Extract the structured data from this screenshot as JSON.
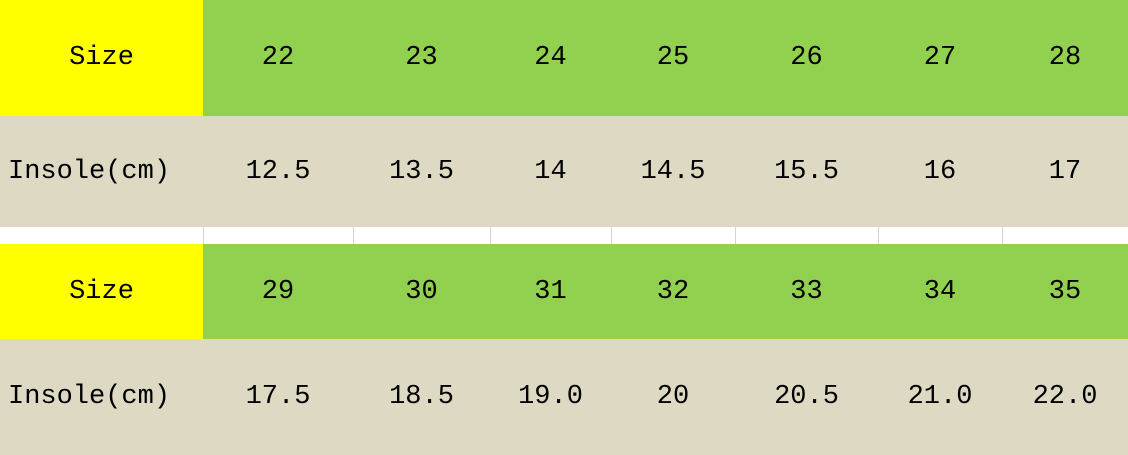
{
  "colors": {
    "size_label_bg": "#ffff00",
    "size_row_bg": "#92d050",
    "insole_row_bg": "#ddd9c3"
  },
  "tables": [
    {
      "size_label": "Size",
      "sizes": [
        "22",
        "23",
        "24",
        "25",
        "26",
        "27",
        "28"
      ],
      "insole_label": "Insole(cm)",
      "insoles": [
        "12.5",
        "13.5",
        "14",
        "14.5",
        "15.5",
        "16",
        "17"
      ]
    },
    {
      "size_label": "Size",
      "sizes": [
        "29",
        "30",
        "31",
        "32",
        "33",
        "34",
        "35"
      ],
      "insole_label": "Insole(cm)",
      "insoles": [
        "17.5",
        "18.5",
        "19.0",
        "20",
        "20.5",
        "21.0",
        "22.0"
      ]
    }
  ]
}
